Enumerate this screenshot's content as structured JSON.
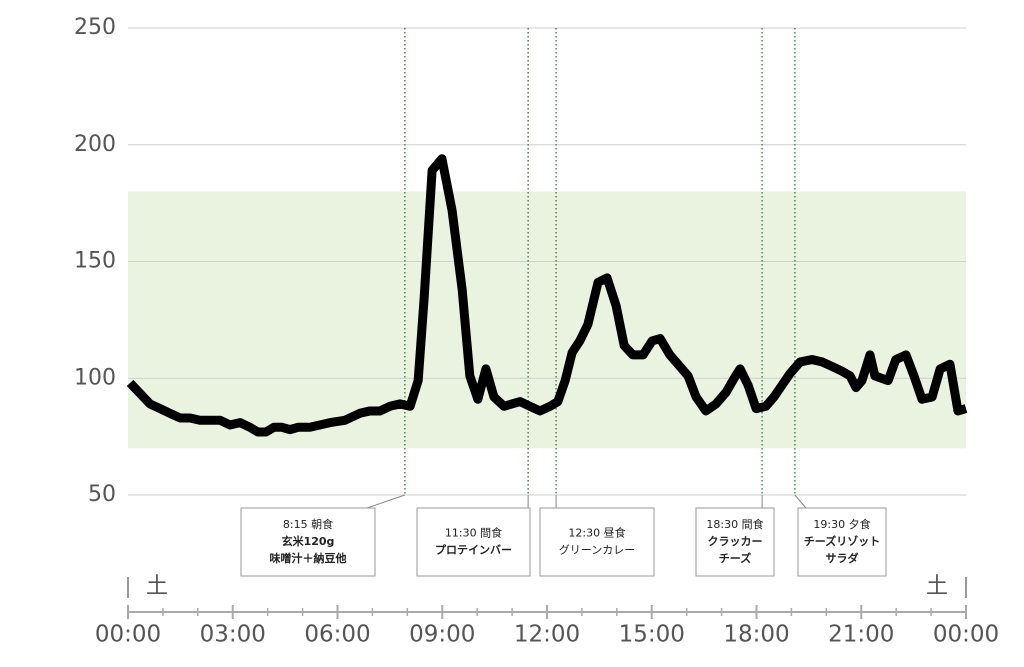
{
  "chart_data": {
    "type": "line",
    "x": [
      0.06,
      0.63,
      0.92,
      1.2,
      1.49,
      1.78,
      2.06,
      2.41,
      2.64,
      2.92,
      3.21,
      3.49,
      3.72,
      3.95,
      4.18,
      4.41,
      4.64,
      4.87,
      5.21,
      5.79,
      6.21,
      6.64,
      6.93,
      7.22,
      7.5,
      7.79,
      8.08,
      8.31,
      8.48,
      8.71,
      8.99,
      9.28,
      9.57,
      9.79,
      10.02,
      10.25,
      10.48,
      10.77,
      11.23,
      11.51,
      11.8,
      12.09,
      12.31,
      12.52,
      12.72,
      12.94,
      13.17,
      13.46,
      13.72,
      13.98,
      14.21,
      14.46,
      14.75,
      15.01,
      15.24,
      15.52,
      15.81,
      16.04,
      16.27,
      16.55,
      16.84,
      17.13,
      17.36,
      17.53,
      17.76,
      17.99,
      18.27,
      18.5,
      18.73,
      18.96,
      19.25,
      19.59,
      19.88,
      20.17,
      20.45,
      20.68,
      20.85,
      21.02,
      21.25,
      21.39,
      21.77,
      21.99,
      22.28,
      22.51,
      22.74,
      23.03,
      23.26,
      23.54,
      23.77,
      24.0
    ],
    "series": [
      {
        "color": "#000000",
        "values": [
          98,
          89,
          87,
          85,
          83,
          83,
          82,
          82,
          82,
          80,
          81,
          79,
          77,
          77,
          79,
          79,
          78,
          79,
          79,
          81,
          82,
          85,
          86,
          86,
          88,
          89,
          88,
          99,
          134,
          189,
          194,
          172,
          138,
          101,
          91,
          104,
          92,
          88,
          90,
          88,
          86,
          88,
          90,
          99,
          111,
          116,
          123,
          141,
          143,
          131,
          114,
          110,
          110,
          116,
          117,
          110,
          105,
          101,
          92,
          86,
          89,
          94,
          100,
          104,
          97,
          87,
          88,
          92,
          97,
          102,
          107,
          108,
          107,
          105,
          103,
          101,
          96,
          99,
          110,
          101,
          99,
          108,
          110,
          101,
          91,
          92,
          104,
          106,
          86,
          87
        ]
      }
    ],
    "xlim": [
      0,
      24
    ],
    "xticks": [
      {
        "value": 0,
        "label": "00:00"
      },
      {
        "value": 3,
        "label": "03:00"
      },
      {
        "value": 6,
        "label": "06:00"
      },
      {
        "value": 9,
        "label": "09:00"
      },
      {
        "value": 12,
        "label": "12:00"
      },
      {
        "value": 15,
        "label": "15:00"
      },
      {
        "value": 18,
        "label": "18:00"
      },
      {
        "value": 21,
        "label": "21:00"
      },
      {
        "value": 24,
        "label": "00:00"
      }
    ],
    "ylim": [
      50,
      250
    ],
    "yticks": [
      50,
      100,
      150,
      200,
      250
    ],
    "grid": true,
    "target_range": [
      70,
      180
    ],
    "target_color": "#eaf3e0",
    "day_labels": [
      {
        "x": 0,
        "label": "土"
      },
      {
        "x": 24,
        "label": "土"
      }
    ],
    "annotations": [
      {
        "x": 7.93,
        "lines": [
          "8:15 朝食",
          "玄米120g",
          "味噌汁＋納豆他"
        ],
        "emphasis": true
      },
      {
        "x": 11.46,
        "lines": [
          "11:30 間食",
          "プロテインバー"
        ],
        "emphasis": true
      },
      {
        "x": 12.26,
        "lines": [
          "12:30 昼食",
          "グリーンカレー"
        ],
        "emphasis": false
      },
      {
        "x": 18.16,
        "lines": [
          "18:30 間食",
          "クラッカー",
          "チーズ"
        ],
        "emphasis": true
      },
      {
        "x": 19.1,
        "lines": [
          "19:30 夕食",
          "チーズリゾット",
          "サラダ"
        ],
        "emphasis": true
      }
    ]
  }
}
